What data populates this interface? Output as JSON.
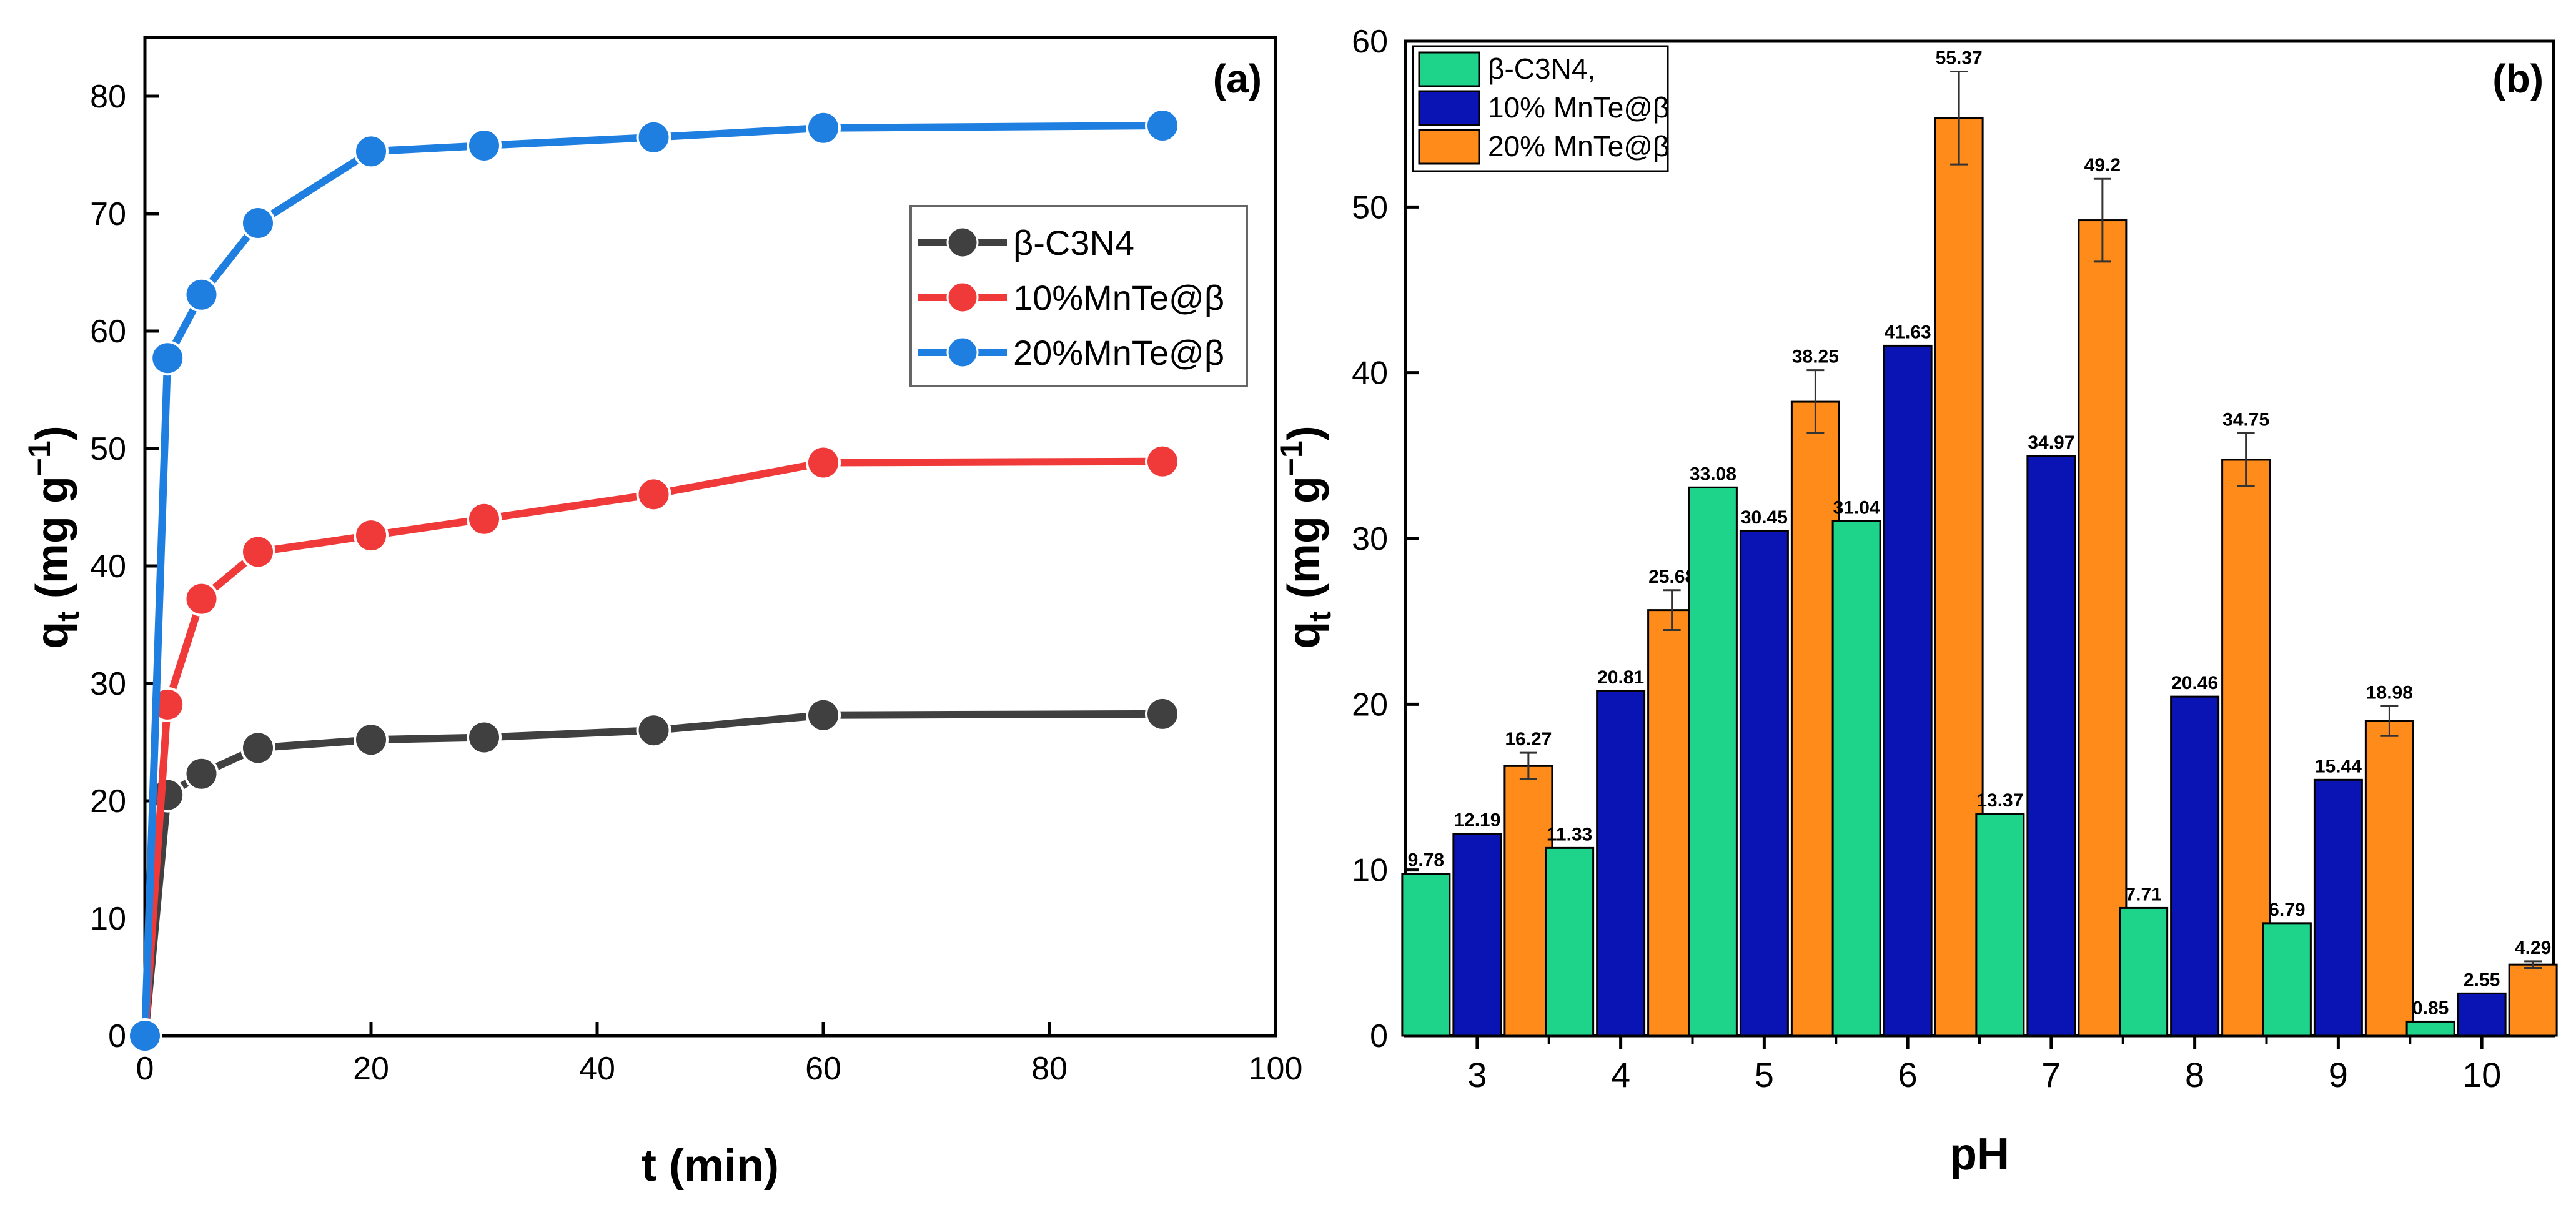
{
  "chart_data": [
    {
      "type": "line",
      "panel_label": "(a)",
      "xlabel": "t (min)",
      "ylabel": "q",
      "ylabel_sub": "t",
      "ylabel_unit": " (mg g",
      "ylabel_sup": "−1",
      "ylabel_close": ")",
      "xlim": [
        0,
        100
      ],
      "ylim": [
        0,
        85
      ],
      "xticks": [
        0,
        20,
        40,
        60,
        80,
        100
      ],
      "yticks": [
        0,
        10,
        20,
        30,
        40,
        50,
        60,
        70,
        80
      ],
      "x": [
        0,
        2,
        5,
        10,
        20,
        30,
        45,
        60,
        90
      ],
      "series": [
        {
          "name": "β-C3N4",
          "color": "#404040",
          "values": [
            0,
            20.5,
            22.3,
            24.5,
            25.2,
            25.4,
            26.0,
            27.3,
            27.4
          ]
        },
        {
          "name": "10%MnTe@β",
          "color": "#f03a3a",
          "values": [
            0,
            28.2,
            37.2,
            41.2,
            42.6,
            44.0,
            46.1,
            48.8,
            48.9
          ]
        },
        {
          "name": "20%MnTe@β",
          "color": "#1f7fe0",
          "values": [
            0,
            57.7,
            63.1,
            69.2,
            75.3,
            75.8,
            76.5,
            77.3,
            77.5
          ]
        }
      ]
    },
    {
      "type": "bar",
      "panel_label": "(b)",
      "xlabel": "pH",
      "ylabel": "q",
      "ylabel_sub": "t",
      "ylabel_unit": " (mg g",
      "ylabel_sup": "−1",
      "ylabel_close": ")",
      "ylim": [
        0,
        60
      ],
      "yticks": [
        0,
        10,
        20,
        30,
        40,
        50,
        60
      ],
      "categories": [
        "3",
        "4",
        "5",
        "6",
        "7",
        "8",
        "9",
        "10"
      ],
      "series": [
        {
          "name": "β-C3N4,",
          "color": "#1ed38a",
          "values": [
            9.78,
            11.33,
            33.08,
            31.04,
            13.37,
            7.71,
            6.79,
            0.85
          ],
          "labels": [
            "9.78",
            "11.33",
            "33.08",
            "31.04",
            "13.37",
            "7.71",
            "6.79",
            "0.85"
          ]
        },
        {
          "name": "10% MnTe@β",
          "color": "#0a14b4",
          "values": [
            12.19,
            20.81,
            30.45,
            41.63,
            34.97,
            20.46,
            15.44,
            2.55
          ],
          "labels": [
            "12.19",
            "20.81",
            "30.45",
            "41.63",
            "34.97",
            "20.46",
            "15.44",
            "2.55"
          ]
        },
        {
          "name": "20% MnTe@β",
          "color": "#ff8c1a",
          "values": [
            16.27,
            25.68,
            38.25,
            55.37,
            49.2,
            34.75,
            18.98,
            4.29
          ],
          "labels": [
            "16.27",
            "25.68",
            "38.25",
            "55.37",
            "49.2",
            "34.75",
            "18.98",
            "4.29"
          ],
          "error": [
            0.8,
            1.2,
            1.9,
            2.8,
            2.5,
            1.6,
            0.9,
            0.2
          ]
        }
      ]
    }
  ]
}
